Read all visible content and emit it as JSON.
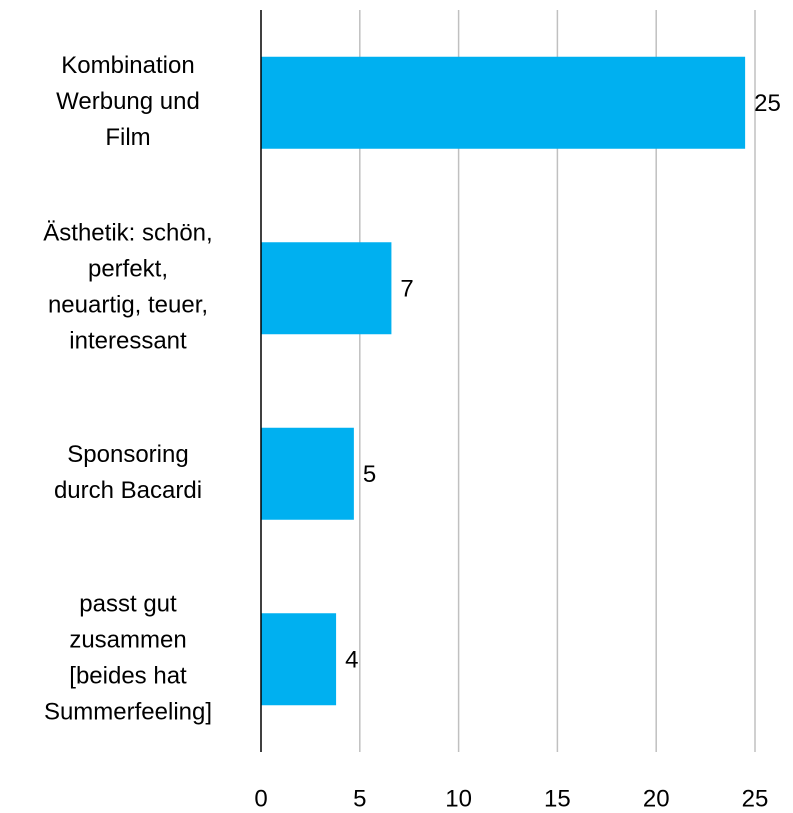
{
  "chart_data": {
    "type": "barh",
    "categories": [
      "Kombination\nWerbung und\nFilm",
      "Ästhetik: schön,\nperfekt,\nneuartig, teuer,\ninteressant",
      "Sponsoring\ndurch Bacardi",
      "passt gut\nzusammen\n[beides hat\nSummerfeeling]"
    ],
    "values": [
      24.5,
      6.6,
      4.7,
      3.8
    ],
    "value_labels": [
      "25",
      "7",
      "5",
      "4"
    ],
    "color": "#00b0f0",
    "xlim": [
      0,
      25
    ],
    "xticks": [
      0,
      5,
      10,
      15,
      20,
      25
    ],
    "grid": true
  }
}
